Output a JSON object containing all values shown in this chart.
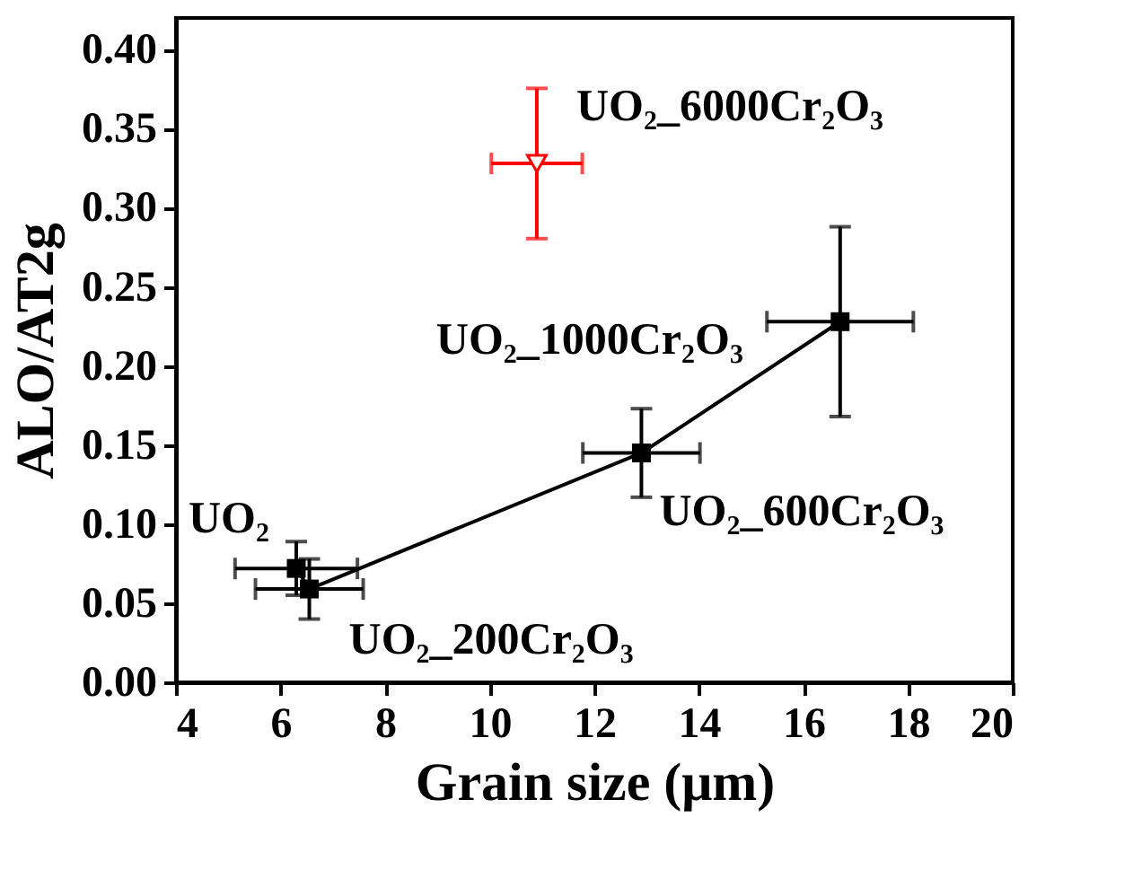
{
  "chart_data": {
    "type": "line",
    "xlabel": "Grain size (μm)",
    "ylabel": "ALO/AT2g",
    "xlim": [
      4,
      20
    ],
    "xticks": [
      4,
      6,
      8,
      10,
      12,
      14,
      16,
      18,
      20
    ],
    "ylim": [
      0,
      0.42
    ],
    "yticks": [
      {
        "value": 0,
        "label": "0.00"
      },
      0.05,
      {
        "value": 0.1,
        "label": "0.10"
      },
      0.15,
      {
        "value": 0.2,
        "label": "0.20"
      },
      0.25,
      {
        "value": 0.3,
        "label": "0.30"
      },
      0.35,
      {
        "value": 0.4,
        "label": "0.40"
      }
    ],
    "grid": false,
    "series": [
      {
        "color": "#000000",
        "marker": "square",
        "line_style": "solid",
        "x": [
          6.3,
          6.55,
          12.9,
          16.7
        ],
        "values": [
          0.072,
          0.059,
          0.145,
          0.228
        ],
        "errors": [
          0.017,
          0.019,
          0.028,
          0.06
        ],
        "xerrors": [
          1.17,
          1.03,
          1.12,
          1.4
        ]
      },
      {
        "type": "scatter",
        "color": "#ff0000",
        "marker": "triangle",
        "x": [
          10.9
        ],
        "values": [
          0.328
        ],
        "errors": [
          0.0475
        ],
        "xerrors": [
          0.87
        ]
      }
    ],
    "annotations": [
      {
        "text": "UO₂",
        "x": 6.3,
        "y": 0.072
      },
      {
        "text": "UO₂_200Cr₂O₃",
        "x": 6.55,
        "y": 0.059
      },
      {
        "text": "UO₂_600Cr₂O₃",
        "x": 12.9,
        "y": 0.145
      },
      {
        "text": "UO₂_1000Cr₂O₃",
        "x": 16.7,
        "y": 0.228
      },
      {
        "text": "UO₂_6000Cr₂O₃",
        "x": 10.9,
        "y": 0.328
      }
    ]
  }
}
